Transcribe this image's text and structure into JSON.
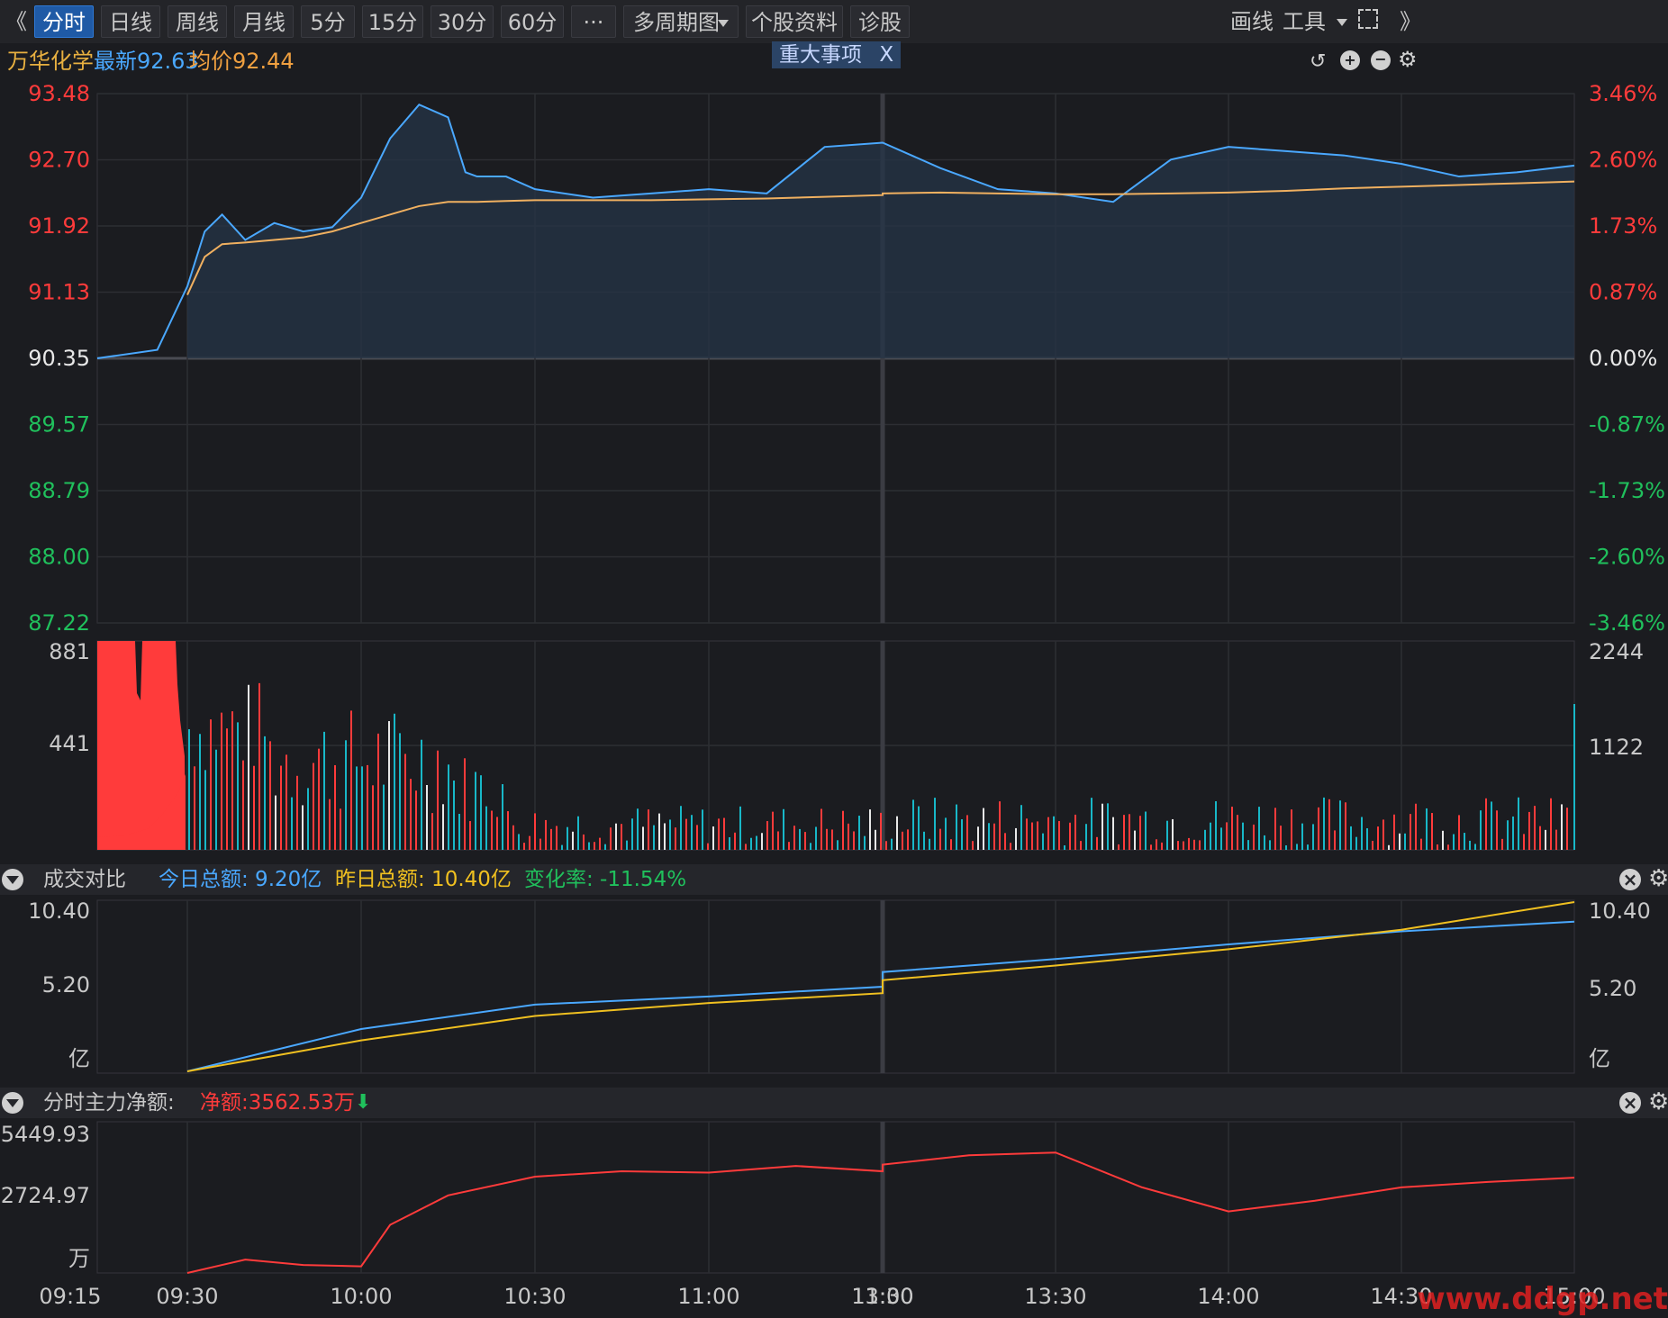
{
  "toolbar": {
    "nav_left": "《",
    "nav_right": "》",
    "tabs": [
      "分时",
      "日线",
      "周线",
      "月线",
      "5分",
      "15分",
      "30分",
      "60分",
      "···",
      "多周期图",
      "个股资料",
      "诊股"
    ],
    "active_tab": "分时",
    "draw_label": "画线",
    "tools_label": "工具"
  },
  "info": {
    "stock_name": "万华化学",
    "latest": "最新92.63",
    "avg": "均价92.44",
    "event_tag": "重大事项",
    "event_close": "X"
  },
  "price_panel": {
    "left_ticks": [
      "93.48",
      "92.70",
      "91.92",
      "91.13",
      "90.35",
      "89.57",
      "88.79",
      "88.00",
      "87.22"
    ],
    "right_ticks": [
      "3.46%",
      "2.60%",
      "1.73%",
      "0.87%",
      "0.00%",
      "-0.87%",
      "-1.73%",
      "-2.60%",
      "-3.46%"
    ],
    "colors": {
      "up": "#ff3b3b",
      "down": "#20c05c",
      "flat": "#e8e8e8",
      "price_line": "#4aa8ff",
      "avg_line": "#f0b060"
    }
  },
  "volume_panel": {
    "left_ticks": [
      "881",
      "441"
    ],
    "right_ticks": [
      "2244",
      "1122"
    ]
  },
  "compare_panel": {
    "title": "成交对比",
    "today": "今日总额: 9.20亿",
    "yesterday": "昨日总额: 10.40亿",
    "change": "变化率: -11.54%",
    "left_ticks": [
      "10.40",
      "5.20",
      "亿"
    ],
    "right_ticks": [
      "10.40",
      "5.20",
      "亿"
    ]
  },
  "flow_panel": {
    "title": "分时主力净额:",
    "net": "净额:3562.53万",
    "left_ticks": [
      "5449.93",
      "2724.97",
      "万"
    ]
  },
  "time_axis": [
    "09:15",
    "09:30",
    "10:00",
    "10:30",
    "11:00",
    "11:30",
    "13:00",
    "13:30",
    "14:00",
    "14:30",
    "15:00"
  ],
  "watermark": "www.ddgp.net",
  "chart_data": [
    {
      "type": "line",
      "title": "万华化学 分时",
      "x": [
        "09:15",
        "09:25",
        "09:30",
        "09:33",
        "09:36",
        "09:40",
        "09:45",
        "09:50",
        "09:55",
        "10:00",
        "10:05",
        "10:10",
        "10:15",
        "10:18",
        "10:20",
        "10:25",
        "10:30",
        "10:40",
        "10:50",
        "11:00",
        "11:10",
        "11:20",
        "11:30",
        "13:00",
        "13:10",
        "13:20",
        "13:30",
        "13:40",
        "13:50",
        "14:00",
        "14:10",
        "14:20",
        "14:30",
        "14:40",
        "14:50",
        "15:00"
      ],
      "series": [
        {
          "name": "最新",
          "values": [
            90.35,
            90.45,
            91.2,
            91.85,
            92.05,
            91.75,
            91.95,
            91.85,
            91.9,
            92.25,
            92.95,
            93.35,
            93.2,
            92.55,
            92.5,
            92.5,
            92.35,
            92.25,
            92.3,
            92.35,
            92.3,
            92.85,
            92.9,
            92.9,
            92.6,
            92.35,
            92.3,
            92.2,
            92.7,
            92.85,
            92.8,
            92.75,
            92.65,
            92.5,
            92.55,
            92.63
          ]
        },
        {
          "name": "均价",
          "values": [
            null,
            null,
            91.1,
            91.55,
            91.7,
            91.72,
            91.75,
            91.78,
            91.85,
            91.95,
            92.05,
            92.15,
            92.2,
            92.2,
            92.2,
            92.21,
            92.22,
            92.22,
            92.22,
            92.23,
            92.24,
            92.26,
            92.28,
            92.3,
            92.31,
            92.3,
            92.29,
            92.29,
            92.3,
            92.31,
            92.33,
            92.36,
            92.38,
            92.4,
            92.42,
            92.44
          ]
        }
      ],
      "ylim": [
        87.22,
        93.48
      ],
      "pre_close": 90.35
    },
    {
      "type": "line",
      "title": "成交对比",
      "x": [
        "09:30",
        "10:00",
        "10:30",
        "11:00",
        "11:30",
        "13:00",
        "13:30",
        "14:00",
        "14:30",
        "15:00"
      ],
      "series": [
        {
          "name": "今日总额",
          "values": [
            0,
            2.6,
            4.1,
            4.6,
            5.2,
            6.1,
            6.9,
            7.8,
            8.6,
            9.2
          ]
        },
        {
          "name": "昨日总额",
          "values": [
            0,
            1.9,
            3.4,
            4.2,
            4.8,
            5.6,
            6.5,
            7.5,
            8.7,
            10.4
          ]
        }
      ],
      "ylim": [
        0,
        10.4
      ]
    },
    {
      "type": "line",
      "title": "分时主力净额",
      "x": [
        "09:30",
        "09:40",
        "09:50",
        "10:00",
        "10:05",
        "10:15",
        "10:30",
        "10:45",
        "11:00",
        "11:15",
        "11:30",
        "13:00",
        "13:15",
        "13:30",
        "13:45",
        "14:00",
        "14:15",
        "14:30",
        "14:45",
        "15:00"
      ],
      "series": [
        {
          "name": "净额",
          "values": [
            0,
            500,
            300,
            250,
            1800,
            2900,
            3600,
            3800,
            3750,
            4000,
            3800,
            4050,
            4400,
            4500,
            3200,
            2300,
            2700,
            3200,
            3400,
            3562.53
          ]
        }
      ],
      "ylim": [
        0,
        5449.93
      ]
    }
  ]
}
